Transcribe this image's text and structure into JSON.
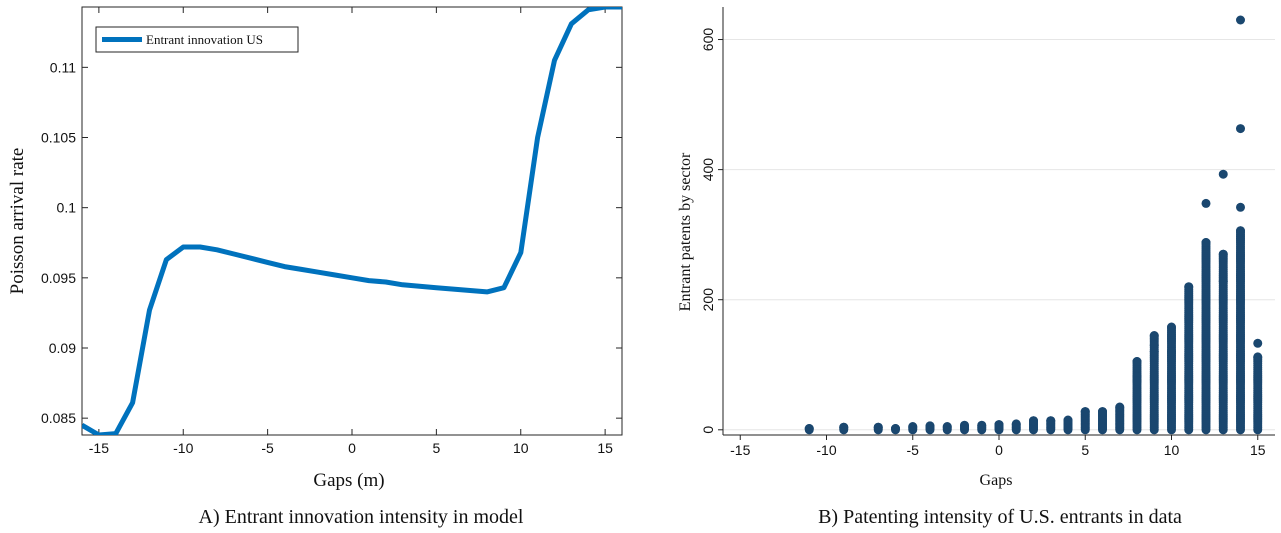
{
  "chart_data": [
    {
      "type": "line",
      "xlabel": "Gaps (m)",
      "ylabel": "Poisson arrival rate",
      "xlim": [
        -16,
        16
      ],
      "ylim": [
        0.0838,
        0.1143
      ],
      "xticks": [
        -15,
        -10,
        -5,
        0,
        5,
        10,
        15
      ],
      "xtick_labels": [
        "-15",
        "-10",
        "-5",
        "0",
        "5",
        "10",
        "15"
      ],
      "yticks": [
        0.085,
        0.09,
        0.095,
        0.1,
        0.105,
        0.11
      ],
      "ytick_labels": [
        "0.085",
        "0.09",
        "0.095",
        "0.1",
        "0.105",
        "0.11"
      ],
      "legend": "top-left",
      "grid": false,
      "series": [
        {
          "name": "Entrant innovation US",
          "color": "#0072BD",
          "x": [
            -16,
            -15,
            -14,
            -13,
            -12,
            -11,
            -10,
            -9,
            -8,
            -7,
            -6,
            -5,
            -4,
            -3,
            -2,
            -1,
            0,
            1,
            2,
            3,
            4,
            5,
            6,
            7,
            8,
            9,
            10,
            11,
            12,
            13,
            14,
            15,
            16
          ],
          "y": [
            0.0845,
            0.0838,
            0.0839,
            0.0861,
            0.0927,
            0.0963,
            0.0972,
            0.0972,
            0.097,
            0.0967,
            0.0964,
            0.0961,
            0.0958,
            0.0956,
            0.0954,
            0.0952,
            0.095,
            0.0948,
            0.0947,
            0.0945,
            0.0944,
            0.0943,
            0.0942,
            0.0941,
            0.094,
            0.0943,
            0.0968,
            0.105,
            0.1105,
            0.1131,
            0.1141,
            0.1143,
            0.1143
          ]
        }
      ]
    },
    {
      "type": "scatter",
      "xlabel": "Gaps",
      "ylabel": "Entrant patents by sector",
      "xlim": [
        -16,
        16
      ],
      "ylim": [
        -8,
        650
      ],
      "xticks": [
        -15,
        -10,
        -5,
        0,
        5,
        10,
        15
      ],
      "xtick_labels": [
        "-15",
        "-10",
        "-5",
        "0",
        "5",
        "10",
        "15"
      ],
      "yticks": [
        0,
        200,
        400,
        600
      ],
      "ytick_labels": [
        "0",
        "200",
        "400",
        "600"
      ],
      "grid": true,
      "color": "#1a476f",
      "points_by_gap": [
        {
          "x": -11,
          "max": 2
        },
        {
          "x": -9,
          "max": 4
        },
        {
          "x": -7,
          "max": 4
        },
        {
          "x": -6,
          "max": 2
        },
        {
          "x": -5,
          "max": 5
        },
        {
          "x": -4,
          "max": 6
        },
        {
          "x": -3,
          "max": 5
        },
        {
          "x": -2,
          "max": 7
        },
        {
          "x": -1,
          "max": 7
        },
        {
          "x": 0,
          "max": 8
        },
        {
          "x": 1,
          "max": 9
        },
        {
          "x": 2,
          "max": 14
        },
        {
          "x": 3,
          "max": 14
        },
        {
          "x": 4,
          "max": 15
        },
        {
          "x": 5,
          "max": 28
        },
        {
          "x": 6,
          "max": 28
        },
        {
          "x": 7,
          "max": 35
        },
        {
          "x": 8,
          "max": 105,
          "extra": [
            82,
            75
          ]
        },
        {
          "x": 9,
          "max": 145,
          "extra": [
            130,
            120
          ]
        },
        {
          "x": 10,
          "max": 158,
          "extra": [
            120
          ]
        },
        {
          "x": 11,
          "max": 220
        },
        {
          "x": 12,
          "max": 288,
          "extra": [
            348
          ]
        },
        {
          "x": 13,
          "max": 270,
          "extra": [
            393,
            228
          ]
        },
        {
          "x": 14,
          "max": 306,
          "extra": [
            342,
            463,
            630
          ]
        },
        {
          "x": 15,
          "max": 112,
          "extra": [
            133
          ]
        }
      ]
    }
  ],
  "captions": {
    "left": "A) Entrant innovation intensity in model",
    "right": "B) Patenting intensity of U.S. entrants in data"
  }
}
